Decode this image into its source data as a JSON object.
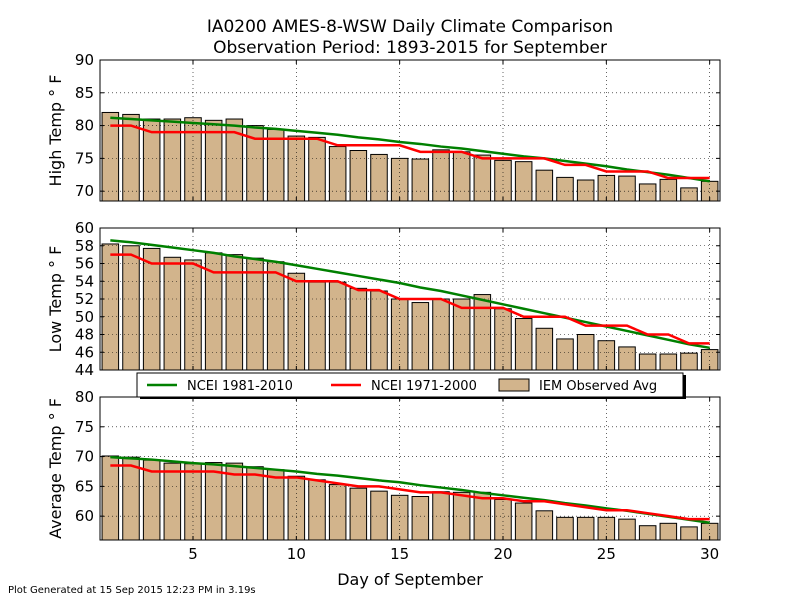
{
  "title_line1": "IA0200 AMES-8-WSW Daily Climate Comparison",
  "title_line2": "Observation Period: 1893-2015 for September",
  "xlabel": "Day of September",
  "footer": "Plot Generated at 15 Sep 2015 12:23 PM in 3.19s",
  "legend": {
    "placement": "between-middle-and-bottom-panels",
    "entries": [
      {
        "label": "NCEI 1981-2010",
        "type": "line",
        "color": "#008000"
      },
      {
        "label": "NCEI 1971-2000",
        "type": "line",
        "color": "#ff0000"
      },
      {
        "label": "IEM Observed Avg",
        "type": "bar",
        "color": "#d2b48c"
      }
    ]
  },
  "chart_data": [
    {
      "type": "bar",
      "ylabel": "High Temp ° F",
      "ylim": [
        68.5,
        90
      ],
      "xlim": [
        0.5,
        30.5
      ],
      "xticks": [
        5,
        10,
        15,
        20,
        25,
        30
      ],
      "yticks": [
        70,
        75,
        80,
        85,
        90
      ],
      "grid": true,
      "x": [
        1,
        2,
        3,
        4,
        5,
        6,
        7,
        8,
        9,
        10,
        11,
        12,
        13,
        14,
        15,
        16,
        17,
        18,
        19,
        20,
        21,
        22,
        23,
        24,
        25,
        26,
        27,
        28,
        29,
        30
      ],
      "series": [
        {
          "name": "IEM Observed Avg",
          "kind": "bar",
          "color": "#d2b48c",
          "values": [
            82,
            81.7,
            81,
            81,
            81.2,
            80.8,
            81,
            80,
            79.4,
            78.4,
            78.2,
            76.8,
            76.2,
            75.6,
            75,
            74.9,
            76.3,
            76,
            75.5,
            74.7,
            74.5,
            73.2,
            72.1,
            71.7,
            72.4,
            72.3,
            71.1,
            71.8,
            70.5,
            71.5
          ]
        },
        {
          "name": "NCEI 1981-2010",
          "kind": "line",
          "color": "#008000",
          "values": [
            81.2,
            81.0,
            80.8,
            80.6,
            80.4,
            80.2,
            80.0,
            79.7,
            79.5,
            79.2,
            78.9,
            78.6,
            78.2,
            77.9,
            77.5,
            77.2,
            76.8,
            76.5,
            76.1,
            75.7,
            75.3,
            75.0,
            74.6,
            74.2,
            73.8,
            73.3,
            72.9,
            72.5,
            72.0,
            71.5
          ]
        },
        {
          "name": "NCEI 1971-2000",
          "kind": "line",
          "color": "#ff0000",
          "values": [
            80,
            80,
            79,
            79,
            79,
            79,
            79,
            78,
            78,
            78,
            78,
            77,
            77,
            77,
            77,
            76,
            76,
            76,
            75,
            75,
            75,
            75,
            74,
            74,
            73,
            73,
            73,
            72,
            72,
            72
          ]
        }
      ]
    },
    {
      "type": "bar",
      "ylabel": "Low Temp ° F",
      "ylim": [
        44,
        60
      ],
      "xlim": [
        0.5,
        30.5
      ],
      "xticks": [
        5,
        10,
        15,
        20,
        25,
        30
      ],
      "yticks": [
        44,
        46,
        48,
        50,
        52,
        54,
        56,
        58,
        60
      ],
      "grid": true,
      "x": [
        1,
        2,
        3,
        4,
        5,
        6,
        7,
        8,
        9,
        10,
        11,
        12,
        13,
        14,
        15,
        16,
        17,
        18,
        19,
        20,
        21,
        22,
        23,
        24,
        25,
        26,
        27,
        28,
        29,
        30
      ],
      "series": [
        {
          "name": "IEM Observed Avg",
          "kind": "bar",
          "color": "#d2b48c",
          "values": [
            58.2,
            58,
            57.7,
            56.7,
            56.4,
            57.2,
            57,
            56.6,
            56.2,
            54.9,
            53.9,
            53.9,
            53.2,
            52.9,
            52,
            51.6,
            52,
            52,
            52.5,
            50.9,
            49.8,
            48.7,
            47.5,
            48,
            47.3,
            46.6,
            45.8,
            45.8,
            45.9,
            46.3
          ]
        },
        {
          "name": "NCEI 1981-2010",
          "kind": "line",
          "color": "#008000",
          "values": [
            58.6,
            58.4,
            58.1,
            57.8,
            57.5,
            57.2,
            56.8,
            56.5,
            56.2,
            55.8,
            55.4,
            55.0,
            54.6,
            54.2,
            53.8,
            53.3,
            52.9,
            52.4,
            51.9,
            51.4,
            50.9,
            50.4,
            49.9,
            49.4,
            48.9,
            48.4,
            47.9,
            47.4,
            46.9,
            46.5
          ]
        },
        {
          "name": "NCEI 1971-2000",
          "kind": "line",
          "color": "#ff0000",
          "values": [
            57,
            57,
            56,
            56,
            56,
            55,
            55,
            55,
            55,
            54,
            54,
            54,
            53,
            53,
            52,
            52,
            52,
            51,
            51,
            51,
            50,
            50,
            50,
            49,
            49,
            49,
            48,
            48,
            47,
            47
          ]
        }
      ]
    },
    {
      "type": "bar",
      "ylabel": "Average Temp ° F",
      "ylim": [
        56,
        80
      ],
      "xlim": [
        0.5,
        30.5
      ],
      "xticks": [
        5,
        10,
        15,
        20,
        25,
        30
      ],
      "xticklabels": [
        "5",
        "10",
        "15",
        "20",
        "25",
        "30"
      ],
      "yticks": [
        60,
        65,
        70,
        75,
        80
      ],
      "grid": true,
      "x": [
        1,
        2,
        3,
        4,
        5,
        6,
        7,
        8,
        9,
        10,
        11,
        12,
        13,
        14,
        15,
        16,
        17,
        18,
        19,
        20,
        21,
        22,
        23,
        24,
        25,
        26,
        27,
        28,
        29,
        30
      ],
      "series": [
        {
          "name": "IEM Observed Avg",
          "kind": "bar",
          "color": "#d2b48c",
          "values": [
            70.1,
            69.9,
            69.4,
            68.9,
            68.8,
            69,
            68.9,
            68.3,
            67.8,
            66.7,
            66.1,
            65.3,
            64.7,
            64.2,
            63.5,
            63.3,
            64.1,
            64,
            64,
            62.8,
            62.2,
            60.9,
            59.8,
            59.8,
            59.8,
            59.5,
            58.4,
            58.8,
            58.2,
            58.8
          ]
        },
        {
          "name": "NCEI 1981-2010",
          "kind": "line",
          "color": "#008000",
          "values": [
            69.9,
            69.7,
            69.5,
            69.2,
            68.9,
            68.7,
            68.4,
            68.1,
            67.8,
            67.5,
            67.1,
            66.8,
            66.4,
            66.0,
            65.7,
            65.2,
            64.8,
            64.4,
            63.9,
            63.5,
            63.1,
            62.7,
            62.2,
            61.8,
            61.3,
            60.9,
            60.4,
            59.9,
            59.4,
            58.9
          ]
        },
        {
          "name": "NCEI 1971-2000",
          "kind": "line",
          "color": "#ff0000",
          "values": [
            68.5,
            68.5,
            67.5,
            67.5,
            67.5,
            67.5,
            67,
            67,
            66.5,
            66.5,
            66,
            65.5,
            65,
            65,
            64.5,
            64,
            64,
            63.5,
            63,
            63,
            62.5,
            62.5,
            62,
            61.5,
            61,
            61,
            60.5,
            60,
            59.5,
            59.5
          ]
        }
      ]
    }
  ]
}
